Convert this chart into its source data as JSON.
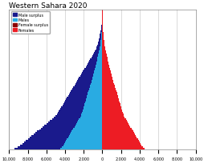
{
  "title": "Western Sahara 2020",
  "male_color": "#29ABE2",
  "male_surplus_color": "#1a1a8c",
  "female_color": "#ED1C24",
  "female_surplus_color": "#8B0000",
  "xlim": 10000,
  "background_color": "#ffffff",
  "grid_color": "#cccccc",
  "legend_labels": [
    "Male surplus",
    "Males",
    "Female surplus",
    "Females"
  ],
  "legend_colors": [
    "#1a1a8c",
    "#29ABE2",
    "#8B0000",
    "#ED1C24"
  ],
  "xtick_labels": [
    "10,000",
    "8,000",
    "6,000",
    "4,000",
    "2,000",
    "0",
    "2,000",
    "4,000",
    "6,000",
    "8,000",
    "10,000"
  ],
  "males": [
    9400,
    9100,
    8800,
    8600,
    8400,
    8200,
    8000,
    7800,
    7600,
    7400,
    7200,
    7000,
    6800,
    6600,
    6400,
    6200,
    6000,
    5800,
    5600,
    5400,
    5200,
    5000,
    4900,
    4800,
    4700,
    4600,
    4500,
    4400,
    4300,
    4200,
    4100,
    4000,
    3900,
    3800,
    3700,
    3600,
    3500,
    3400,
    3300,
    3200,
    3100,
    3000,
    2900,
    2800,
    2700,
    2600,
    2500,
    2400,
    2300,
    2200,
    2100,
    2000,
    1900,
    1800,
    1700,
    1600,
    1500,
    1400,
    1300,
    1200,
    1100,
    1000,
    900,
    820,
    750,
    680,
    620,
    560,
    510,
    460,
    420,
    380,
    340,
    300,
    265,
    230,
    200,
    170,
    145,
    120,
    98,
    79,
    63,
    49,
    38,
    28,
    20,
    14,
    10,
    7,
    4
  ],
  "females": [
    4500,
    4350,
    4200,
    4100,
    4000,
    3900,
    3800,
    3700,
    3600,
    3500,
    3400,
    3300,
    3200,
    3100,
    3000,
    2900,
    2800,
    2700,
    2600,
    2500,
    2400,
    2300,
    2250,
    2200,
    2150,
    2100,
    2050,
    2000,
    1950,
    1900,
    1850,
    1800,
    1750,
    1700,
    1650,
    1600,
    1550,
    1500,
    1450,
    1400,
    1350,
    1300,
    1250,
    1200,
    1150,
    1100,
    1050,
    1000,
    960,
    920,
    880,
    840,
    800,
    760,
    720,
    680,
    640,
    600,
    560,
    520,
    480,
    440,
    400,
    365,
    330,
    300,
    270,
    245,
    220,
    200,
    180,
    160,
    143,
    127,
    112,
    98,
    85,
    73,
    62,
    52,
    43,
    35,
    28,
    22,
    17,
    13,
    9,
    7,
    5,
    3,
    2
  ]
}
